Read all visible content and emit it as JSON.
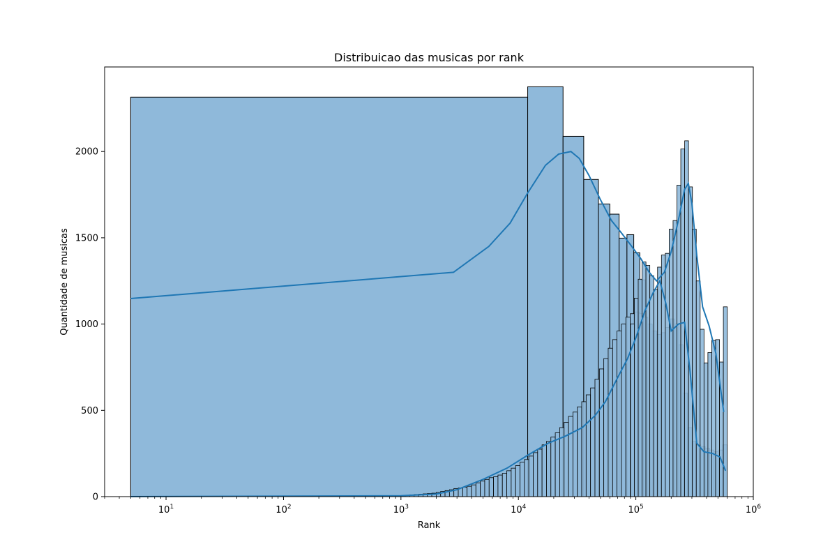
{
  "chart_data": {
    "type": "bar",
    "title": "Distribuicao das musicas por rank",
    "xlabel": "Rank",
    "ylabel": "Quantidade de musicas",
    "x_scale": "log",
    "xlim": [
      3,
      1000000
    ],
    "ylim": [
      0,
      2490
    ],
    "x_ticks": [
      {
        "value": 10,
        "base": "10",
        "exp": "1"
      },
      {
        "value": 100,
        "base": "10",
        "exp": "2"
      },
      {
        "value": 1000,
        "base": "10",
        "exp": "3"
      },
      {
        "value": 10000,
        "base": "10",
        "exp": "4"
      },
      {
        "value": 100000,
        "base": "10",
        "exp": "5"
      },
      {
        "value": 1000000,
        "base": "10",
        "exp": "6"
      }
    ],
    "y_ticks": [
      0,
      500,
      1000,
      1500,
      2000
    ],
    "grid": false,
    "bar_color": "#8fb9da",
    "line_color": "#1f77b4",
    "series": [
      {
        "kind": "hist_linear_bins",
        "edges": [
          5,
          12000,
          24000,
          36000,
          48000,
          60000,
          72000,
          84000,
          96000,
          108000,
          120000
        ],
        "counts": [
          2315,
          2375,
          2088,
          1838,
          1696,
          1637,
          1498,
          1518,
          1413,
          1256
        ]
      },
      {
        "kind": "hist_log_bins",
        "bins_from": 1000,
        "bins_to": 600000,
        "counts": [
          5,
          8,
          10,
          12,
          14,
          16,
          18,
          20,
          24,
          30,
          35,
          40,
          47,
          50,
          55,
          60,
          68,
          80,
          90,
          100,
          110,
          115,
          125,
          135,
          150,
          165,
          180,
          200,
          215,
          235,
          255,
          275,
          300,
          320,
          345,
          370,
          400,
          430,
          465,
          490,
          520,
          550,
          590,
          630,
          680,
          740,
          800,
          860,
          910,
          960,
          1000,
          1040,
          1060,
          1070,
          1060,
          1040,
          1000,
          960,
          940,
          950,
          980,
          1030,
          1000,
          880,
          600,
          400,
          320,
          300,
          290,
          280,
          270,
          260,
          270,
          300
        ]
      },
      {
        "kind": "hist_log_bins",
        "bins_from": 90000,
        "bins_to": 600000,
        "counts": [
          1000,
          1150,
          1260,
          1360,
          1340,
          1280,
          1200,
          1330,
          1400,
          1410,
          1550,
          1600,
          1805,
          2015,
          2062,
          1795,
          1550,
          1250,
          970,
          775,
          835,
          905,
          910,
          780,
          1100
        ]
      },
      {
        "kind": "kde",
        "x": [
          5,
          2800,
          5600,
          8500,
          12000,
          17000,
          22000,
          28000,
          33000,
          40000,
          50000,
          62000,
          75000,
          90000,
          110000,
          130000,
          150000,
          175000,
          200000,
          230000,
          260000,
          280000,
          300000,
          330000,
          370000,
          420000,
          480000,
          560000
        ],
        "y": [
          1148,
          1300,
          1450,
          1585,
          1760,
          1920,
          1985,
          2000,
          1960,
          1860,
          1720,
          1600,
          1530,
          1460,
          1380,
          1300,
          1250,
          1300,
          1420,
          1600,
          1780,
          1815,
          1700,
          1400,
          1100,
          990,
          830,
          490
        ]
      },
      {
        "kind": "kde",
        "x": [
          5,
          1000,
          2000,
          3000,
          5000,
          8000,
          12000,
          18000,
          25000,
          35000,
          45000,
          55000,
          70000,
          85000,
          100000,
          120000,
          140000,
          160000,
          180000,
          200000,
          230000,
          260000,
          290000,
          330000,
          380000,
          450000,
          520000,
          580000
        ],
        "y": [
          0,
          5,
          15,
          40,
          100,
          165,
          240,
          310,
          350,
          400,
          470,
          550,
          690,
          800,
          920,
          1080,
          1180,
          1250,
          1120,
          960,
          1000,
          1010,
          720,
          310,
          260,
          250,
          230,
          150
        ]
      }
    ]
  }
}
